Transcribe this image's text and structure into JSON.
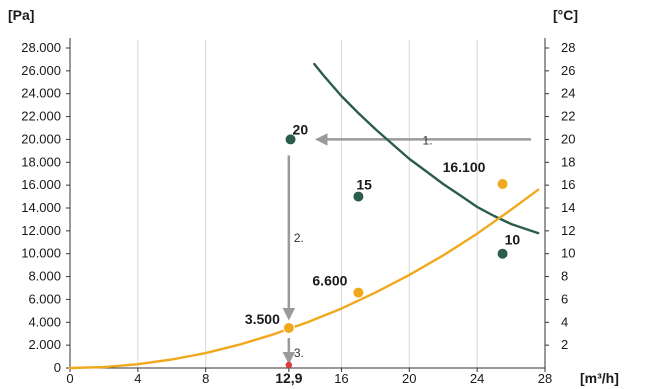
{
  "chart_data": {
    "type": "line",
    "left_unit": "[Pa]",
    "right_unit": "[°C]",
    "x_unit": "[m³/h]",
    "x_ticks": [
      {
        "value": 0,
        "label": "0"
      },
      {
        "value": 4,
        "label": "4"
      },
      {
        "value": 8,
        "label": "8"
      },
      {
        "value": 12.9,
        "label": "12,9",
        "bold": true
      },
      {
        "value": 16,
        "label": "16"
      },
      {
        "value": 20,
        "label": "20"
      },
      {
        "value": 24,
        "label": "24"
      },
      {
        "value": 28,
        "label": "28"
      }
    ],
    "left_ticks": [
      {
        "value": 0,
        "label": "0"
      },
      {
        "value": 2000,
        "label": "2.000"
      },
      {
        "value": 4000,
        "label": "4.000"
      },
      {
        "value": 6000,
        "label": "6.000"
      },
      {
        "value": 8000,
        "label": "8.000"
      },
      {
        "value": 10000,
        "label": "10.000"
      },
      {
        "value": 12000,
        "label": "12.000"
      },
      {
        "value": 14000,
        "label": "14.000"
      },
      {
        "value": 16000,
        "label": "16.000"
      },
      {
        "value": 18000,
        "label": "18.000"
      },
      {
        "value": 20000,
        "label": "20.000"
      },
      {
        "value": 22000,
        "label": "22.000"
      },
      {
        "value": 24000,
        "label": "24.000"
      },
      {
        "value": 26000,
        "label": "26.000"
      },
      {
        "value": 28000,
        "label": "28.000"
      }
    ],
    "right_ticks": [
      {
        "value": 2,
        "label": "2"
      },
      {
        "value": 4,
        "label": "4"
      },
      {
        "value": 6,
        "label": "6"
      },
      {
        "value": 8,
        "label": "8"
      },
      {
        "value": 10,
        "label": "10"
      },
      {
        "value": 12,
        "label": "12"
      },
      {
        "value": 14,
        "label": "14"
      },
      {
        "value": 16,
        "label": "16"
      },
      {
        "value": 18,
        "label": "18"
      },
      {
        "value": 20,
        "label": "20"
      },
      {
        "value": 22,
        "label": "22"
      },
      {
        "value": 24,
        "label": "24"
      },
      {
        "value": 26,
        "label": "26"
      },
      {
        "value": 28,
        "label": "28"
      }
    ],
    "xlim": [
      0,
      28
    ],
    "ylim_left": [
      0,
      28000
    ],
    "ylim_right": [
      0,
      28
    ],
    "grid": "vertical",
    "series": [
      {
        "axis": "right",
        "color": "#2b5d4a",
        "x": [
          14.4,
          15.0,
          16.0,
          17.0,
          18.0,
          19.0,
          20.0,
          21.0,
          22.0,
          23.0,
          24.0,
          25.0,
          26.0,
          27.0,
          27.6
        ],
        "y": [
          26.6,
          25.5,
          23.8,
          22.3,
          20.9,
          19.6,
          18.3,
          17.2,
          16.1,
          15.1,
          14.1,
          13.3,
          12.6,
          12.1,
          11.8
        ],
        "points": [
          {
            "x": 13.0,
            "y": 20,
            "label": "20"
          },
          {
            "x": 17.0,
            "y": 15,
            "label": "15"
          },
          {
            "x": 25.5,
            "y": 10,
            "label": "10"
          }
        ]
      },
      {
        "axis": "left",
        "color": "#f2a81d",
        "x": [
          0,
          2,
          4,
          6,
          8,
          10,
          12,
          14,
          16,
          18,
          20,
          22,
          24,
          26,
          27.6
        ],
        "y": [
          0,
          80,
          330,
          740,
          1300,
          2050,
          2950,
          4000,
          5200,
          6600,
          8150,
          9850,
          11750,
          13850,
          15600
        ],
        "points": [
          {
            "x": 12.9,
            "y": 3500,
            "label": "3.500"
          },
          {
            "x": 17.0,
            "y": 6600,
            "label": "6.600"
          },
          {
            "x": 25.5,
            "y": 16100,
            "label": "16.100"
          }
        ]
      }
    ],
    "annotations": [
      {
        "label": "1."
      },
      {
        "label": "2."
      },
      {
        "label": "3."
      }
    ],
    "marker_color": "#e0393e"
  }
}
